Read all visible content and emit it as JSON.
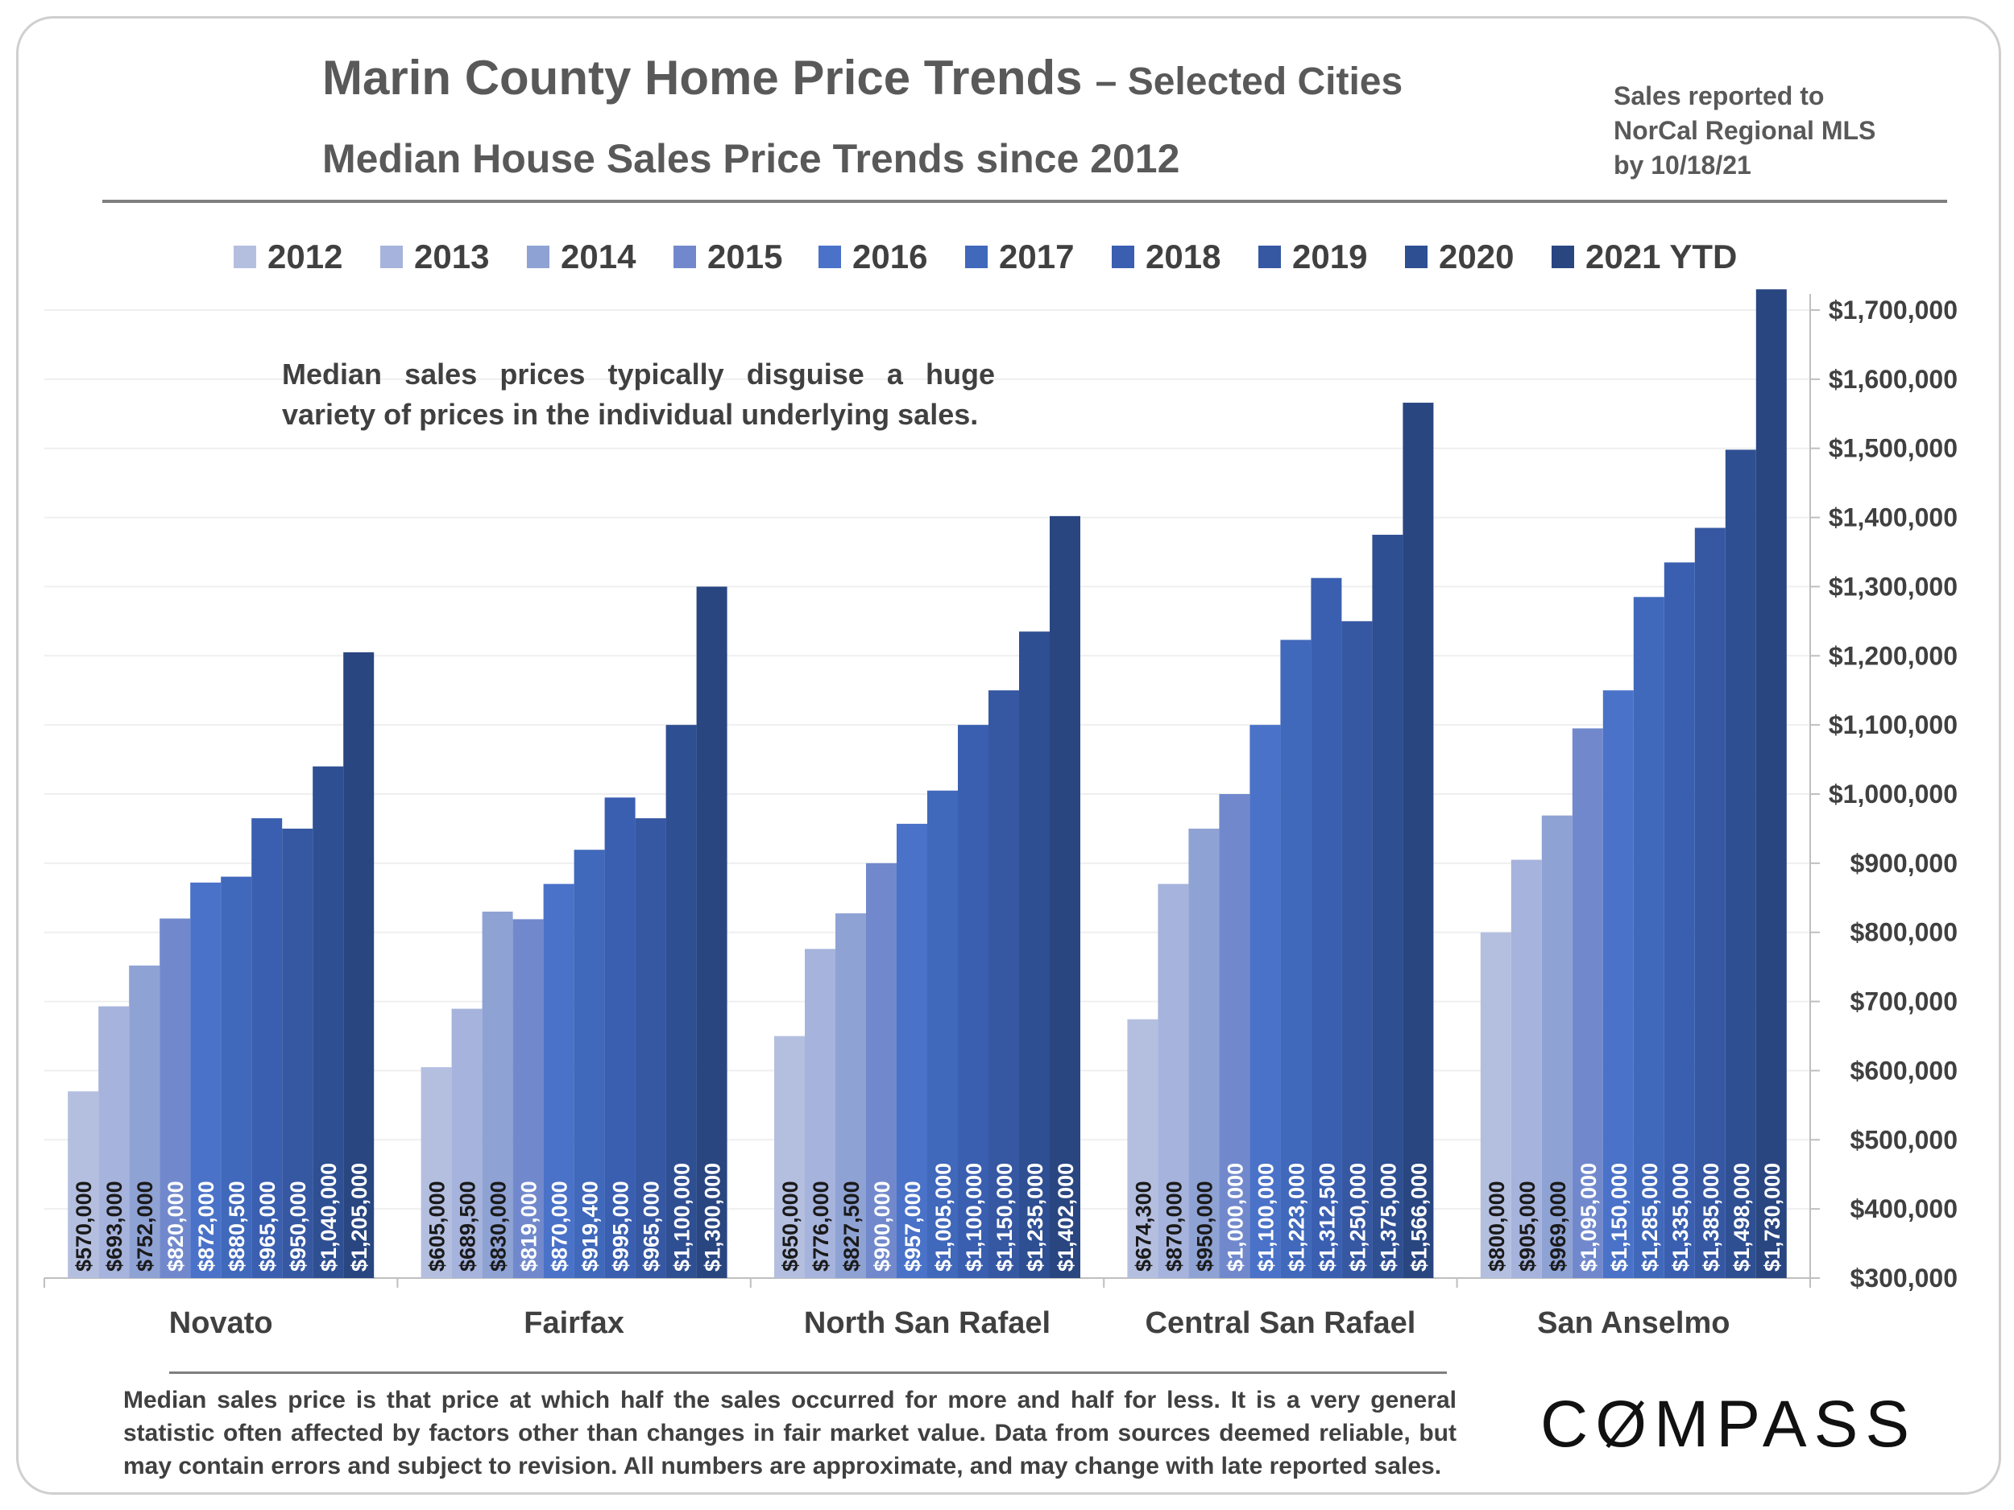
{
  "header": {
    "title_main": "Marin County Home Price Trends",
    "title_suffix": "– Selected Cities",
    "subtitle": "Median House Sales Price Trends since 2012",
    "source_lines": [
      "Sales reported to",
      "NorCal Regional MLS",
      "by 10/18/21"
    ]
  },
  "annotation": "Median sales prices typically disguise a huge variety of prices in the individual underlying sales.",
  "footnote": "Median sales price is that price at which half the sales occurred for more and half for less. It is a very general statistic often affected by factors other than changes in fair market value. Data from sources deemed reliable, but may contain errors and subject to revision. All numbers are approximate, and may change with late reported sales.",
  "logo": {
    "text_before": "C",
    "text_o": "O",
    "text_after": "MPASS"
  },
  "chart_data": {
    "type": "bar",
    "categories": [
      "Novato",
      "Fairfax",
      "North San Rafael",
      "Central San Rafael",
      "San Anselmo"
    ],
    "series": [
      {
        "name": "2012",
        "color": "#b4bfe0",
        "values": [
          570000,
          605000,
          650000,
          674300,
          800000
        ]
      },
      {
        "name": "2013",
        "color": "#a6b3dc",
        "values": [
          693000,
          689500,
          776000,
          870000,
          905000
        ]
      },
      {
        "name": "2014",
        "color": "#8fa2d4",
        "values": [
          752000,
          830000,
          827500,
          950000,
          969000
        ]
      },
      {
        "name": "2015",
        "color": "#7189cc",
        "values": [
          820000,
          819000,
          900000,
          1000000,
          1095000
        ]
      },
      {
        "name": "2016",
        "color": "#4a72c8",
        "values": [
          872000,
          870000,
          957000,
          1100000,
          1150000
        ]
      },
      {
        "name": "2017",
        "color": "#4068bb",
        "values": [
          880500,
          919400,
          1005000,
          1223000,
          1285000
        ]
      },
      {
        "name": "2018",
        "color": "#3a5fb1",
        "values": [
          965000,
          995000,
          1100000,
          1312500,
          1335000
        ]
      },
      {
        "name": "2019",
        "color": "#3657a2",
        "values": [
          950000,
          965000,
          1150000,
          1250000,
          1385000
        ]
      },
      {
        "name": "2020",
        "color": "#2f4f93",
        "values": [
          1040000,
          1100000,
          1235000,
          1375000,
          1498000
        ]
      },
      {
        "name": "2021 YTD",
        "color": "#294681",
        "values": [
          1205000,
          1300000,
          1402000,
          1566000,
          1730000
        ]
      }
    ],
    "data_labels": [
      [
        "$570,000",
        "$693,000",
        "$752,000",
        "$820,000",
        "$872,000",
        "$880,500",
        "$965,000",
        "$950,000",
        "$1,040,000",
        "$1,205,000"
      ],
      [
        "$605,000",
        "$689,500",
        "$830,000",
        "$819,000",
        "$870,000",
        "$919,400",
        "$995,000",
        "$965,000",
        "$1,100,000",
        "$1,300,000"
      ],
      [
        "$650,000",
        "$776,000",
        "$827,500",
        "$900,000",
        "$957,000",
        "$1,005,000",
        "$1,100,000",
        "$1,150,000",
        "$1,235,000",
        "$1,402,000"
      ],
      [
        "$674,300",
        "$870,000",
        "$950,000",
        "$1,000,000",
        "$1,100,000",
        "$1,223,000",
        "$1,312,500",
        "$1,250,000",
        "$1,375,000",
        "$1,566,000"
      ],
      [
        "$800,000",
        "$905,000",
        "$969,000",
        "$1,095,000",
        "$1,150,000",
        "$1,285,000",
        "$1,335,000",
        "$1,385,000",
        "$1,498,000",
        "$1,730,000"
      ]
    ],
    "dark_label_series_count": 3,
    "yaxis": {
      "position": "right",
      "ylim": [
        300000,
        1750000
      ],
      "tick_values": [
        300000,
        400000,
        500000,
        600000,
        700000,
        800000,
        900000,
        1000000,
        1100000,
        1200000,
        1300000,
        1400000,
        1500000,
        1600000,
        1700000
      ],
      "tick_labels": [
        "$300,000",
        "$400,000",
        "$500,000",
        "$600,000",
        "$700,000",
        "$800,000",
        "$900,000",
        "$1,000,000",
        "$1,100,000",
        "$1,200,000",
        "$1,300,000",
        "$1,400,000",
        "$1,500,000",
        "$1,600,000",
        "$1,700,000"
      ]
    },
    "grid": true,
    "legend": "top"
  }
}
